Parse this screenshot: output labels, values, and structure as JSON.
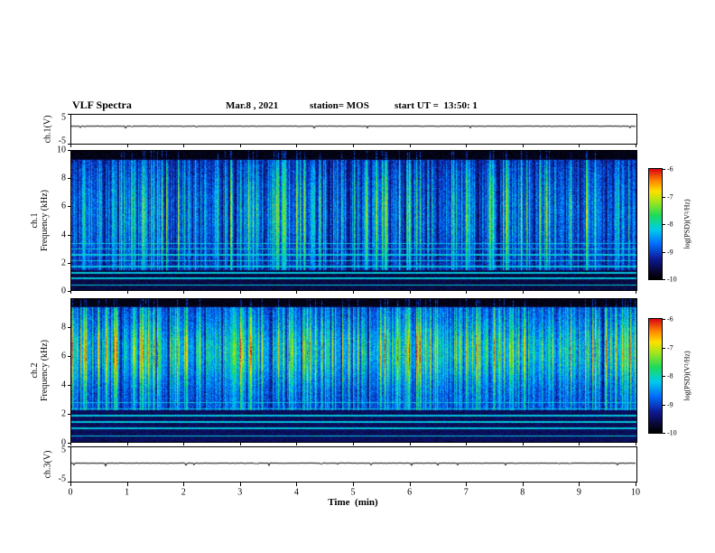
{
  "header": {
    "title": "VLF Spectra",
    "date": "Mar.8 , 2021",
    "station": "station= MOS",
    "start_ut": "start UT =  13:50: 1"
  },
  "x_axis": {
    "label": "Time  (min)",
    "ticks": [
      "0",
      "1",
      "2",
      "3",
      "4",
      "5",
      "6",
      "7",
      "8",
      "9",
      "10"
    ],
    "min": 0,
    "max": 10
  },
  "panels": {
    "ch1_volt": {
      "label": "ch.1(V)",
      "tick_top": "5",
      "tick_bottom": "-5"
    },
    "ch1_spec": {
      "label_line1": "ch.1",
      "label_line2": "Frequency (kHz)",
      "yticks": [
        "10",
        "8",
        "6",
        "4",
        "2",
        "0"
      ]
    },
    "ch2_spec": {
      "label_line1": "ch.2",
      "label_line2": "Frequency (kHz)",
      "yticks": [
        "8",
        "6",
        "4",
        "2",
        "0"
      ]
    },
    "ch3_volt": {
      "label": "ch.3(V)",
      "tick_top": "5",
      "tick_bottom": "-5"
    }
  },
  "colorbars": [
    {
      "label": "log(PSD)(V²/Hz)",
      "ticks": [
        "-6",
        "-7",
        "-8",
        "-9",
        "-10"
      ]
    },
    {
      "label": "log(PSD)(V²/Hz)",
      "ticks": [
        "-6",
        "-7",
        "-8",
        "-9",
        "-10"
      ]
    }
  ],
  "chart_data": [
    {
      "type": "line",
      "name": "ch.1 voltage",
      "ylabel": "ch.1(V)",
      "xlim": [
        0,
        10
      ],
      "ylim": [
        -5,
        5
      ],
      "baseline_value": 1.2,
      "description": "nearly constant voltage trace with sparse tiny downward spikes"
    },
    {
      "type": "heatmap",
      "name": "ch.1 VLF spectrogram",
      "ylabel": "ch.1 Frequency (kHz)",
      "xlabel": "Time (min)",
      "xlim": [
        0,
        10
      ],
      "ylim": [
        0,
        10
      ],
      "zlabel": "log(PSD)(V²/Hz)",
      "zlim": [
        -10,
        -6
      ],
      "background_psd": -9.65,
      "broadband_band_khz": [
        1.4,
        9.35
      ],
      "streak_peak_psd": -7.0,
      "streak_density": 0.6,
      "interference_lines_khz": [
        0.35,
        0.85,
        1.25,
        1.7,
        2.1,
        2.55,
        2.95,
        3.35
      ],
      "interference_psd": -8.2,
      "top_quiet_band_khz": [
        9.4,
        10
      ],
      "description": "dense vertical sferic streaks (blue/green/yellow) over dark blue background, narrow horizontal interference lines below 3.5 kHz, quiet black band above 9.4 kHz"
    },
    {
      "type": "heatmap",
      "name": "ch.2 VLF spectrogram",
      "ylabel": "ch.2 Frequency (kHz)",
      "xlabel": "Time (min)",
      "xlim": [
        0,
        10
      ],
      "ylim": [
        0,
        10
      ],
      "zlabel": "log(PSD)(V²/Hz)",
      "zlim": [
        -10,
        -6
      ],
      "background_psd": -9.55,
      "broadband_band_khz": [
        2.2,
        9.45
      ],
      "hot_band_khz": [
        4.8,
        7.8
      ],
      "streak_peak_psd": -6.1,
      "streak_density": 0.82,
      "interference_lines_khz": [
        0.4,
        0.95,
        1.4,
        1.85,
        2.3,
        2.75
      ],
      "interference_psd": -8.2,
      "top_quiet_band_khz": [
        9.5,
        10
      ],
      "description": "intense red/orange band near 5-8 kHz with dense vertical streaks spanning 2.5-9.5 kHz, horizontal interference lines below 3 kHz"
    },
    {
      "type": "line",
      "name": "ch.3 voltage",
      "ylabel": "ch.3(V)",
      "xlim": [
        0,
        10
      ],
      "ylim": [
        -5,
        5
      ],
      "baseline_value": 0.5,
      "description": "flat voltage trace near zero"
    }
  ]
}
